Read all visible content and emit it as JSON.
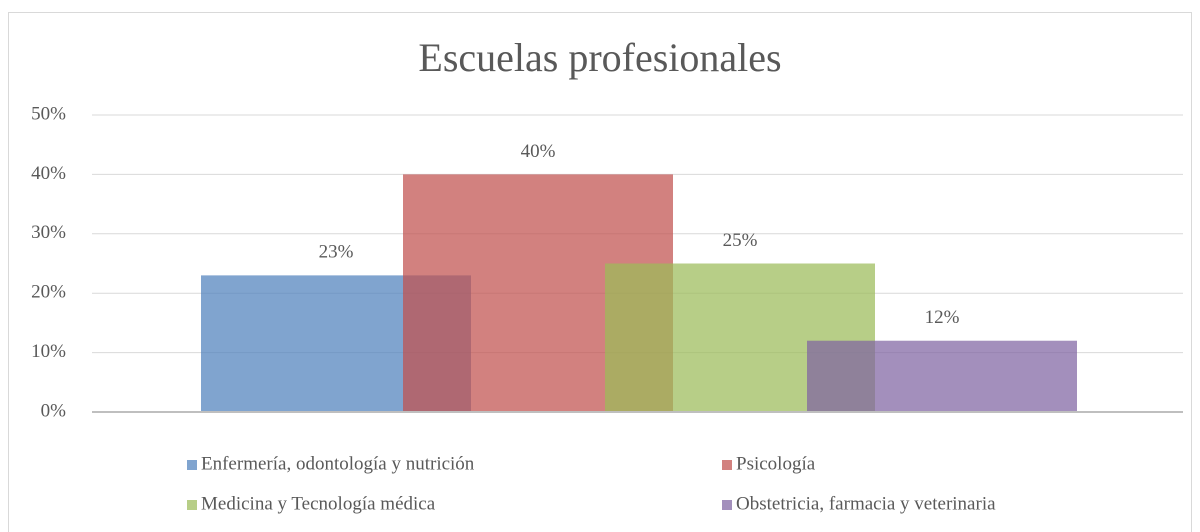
{
  "chart_data": {
    "type": "bar",
    "title": "Escuelas  profesionales",
    "series": [
      {
        "name": "Enfermería, odontología y nutrición",
        "color": "#4f81bd",
        "values": [
          23
        ],
        "value_labels": [
          "23%"
        ]
      },
      {
        "name": "Psicología",
        "color": "#c0504d",
        "values": [
          40
        ],
        "value_labels": [
          "40%"
        ]
      },
      {
        "name": "Medicina y Tecnología médica",
        "color": "#9bbb59",
        "values": [
          25
        ],
        "value_labels": [
          "25%"
        ]
      },
      {
        "name": "Obstetricia, farmacia y veterinaria",
        "color": "#8064a2",
        "values": [
          12
        ],
        "value_labels": [
          "12%"
        ]
      }
    ],
    "ylim": [
      0,
      50
    ],
    "yticks": [
      {
        "value": 0,
        "label": "0%"
      },
      {
        "value": 10,
        "label": "10%"
      },
      {
        "value": 20,
        "label": "20%"
      },
      {
        "value": 30,
        "label": "30%"
      },
      {
        "value": 40,
        "label": "40%"
      },
      {
        "value": 50,
        "label": "50%"
      }
    ],
    "grid": true,
    "legend": "bottom"
  }
}
